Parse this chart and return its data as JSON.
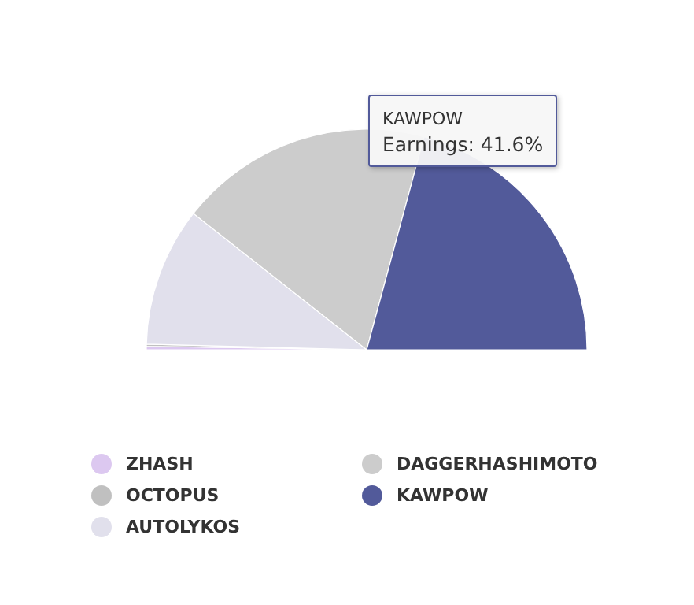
{
  "chart_data": {
    "type": "pie",
    "categories": [
      "ZHASH",
      "OCTOPUS",
      "AUTOLYKOS",
      "DAGGERHASHIMOTO",
      "KAWPOW"
    ],
    "values": [
      0.5,
      0.3,
      20.4,
      37.2,
      41.6
    ],
    "colors": [
      "#dcc8f0",
      "#c0c0c0",
      "#e1e0ec",
      "#cccccc",
      "#525a9a"
    ],
    "legend": "bottom",
    "annotations": [
      "KAWPOW",
      "Earnings: 41.6%"
    ]
  }
}
